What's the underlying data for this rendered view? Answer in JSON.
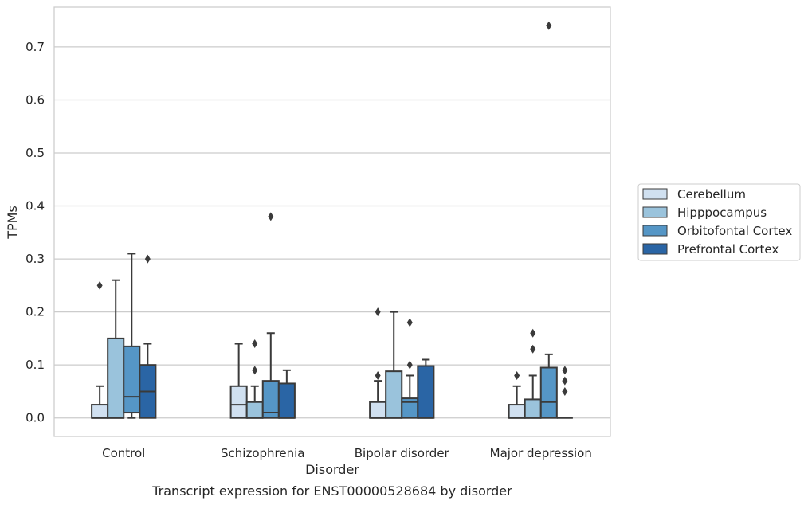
{
  "chart_data": {
    "type": "box",
    "caption": "Transcript expression for ENST00000528684 by disorder",
    "xlabel": "Disorder",
    "ylabel": "TPMs",
    "ylim": [
      -0.035,
      0.775
    ],
    "yticks": [
      "0.0",
      "0.1",
      "0.2",
      "0.3",
      "0.4",
      "0.5",
      "0.6",
      "0.7"
    ],
    "grid": "horizontal",
    "legend_position": "right",
    "categories": [
      "Control",
      "Schizophrenia",
      "Bipolar disorder",
      "Major depression"
    ],
    "series": [
      {
        "name": "Cerebellum",
        "color": "#d0e0f0",
        "boxes": [
          {
            "whislo": 0.0,
            "q1": 0.0,
            "med": 0.0,
            "q3": 0.025,
            "whishi": 0.06,
            "fliers": [
              0.25
            ]
          },
          {
            "whislo": 0.0,
            "q1": 0.0,
            "med": 0.025,
            "q3": 0.06,
            "whishi": 0.14,
            "fliers": []
          },
          {
            "whislo": 0.0,
            "q1": 0.0,
            "med": 0.0,
            "q3": 0.03,
            "whishi": 0.07,
            "fliers": [
              0.08,
              0.2
            ]
          },
          {
            "whislo": 0.0,
            "q1": 0.0,
            "med": 0.0,
            "q3": 0.025,
            "whishi": 0.06,
            "fliers": [
              0.08
            ]
          }
        ]
      },
      {
        "name": "Hipppocampus",
        "color": "#9ac3dc",
        "boxes": [
          {
            "whislo": 0.0,
            "q1": 0.0,
            "med": 0.0,
            "q3": 0.15,
            "whishi": 0.26,
            "fliers": []
          },
          {
            "whislo": 0.0,
            "q1": 0.0,
            "med": 0.0,
            "q3": 0.03,
            "whishi": 0.06,
            "fliers": [
              0.09,
              0.14
            ]
          },
          {
            "whislo": 0.0,
            "q1": 0.0,
            "med": 0.0,
            "q3": 0.088,
            "whishi": 0.2,
            "fliers": []
          },
          {
            "whislo": 0.0,
            "q1": 0.0,
            "med": 0.0,
            "q3": 0.035,
            "whishi": 0.08,
            "fliers": [
              0.13,
              0.16
            ]
          }
        ]
      },
      {
        "name": "Orbitofontal Cortex",
        "color": "#5596c6",
        "boxes": [
          {
            "whislo": 0.0,
            "q1": 0.01,
            "med": 0.04,
            "q3": 0.135,
            "whishi": 0.31,
            "fliers": []
          },
          {
            "whislo": 0.0,
            "q1": 0.0,
            "med": 0.01,
            "q3": 0.07,
            "whishi": 0.16,
            "fliers": [
              0.38
            ]
          },
          {
            "whislo": 0.0,
            "q1": 0.0,
            "med": 0.03,
            "q3": 0.037,
            "whishi": 0.08,
            "fliers": [
              0.1,
              0.18
            ]
          },
          {
            "whislo": 0.0,
            "q1": 0.0,
            "med": 0.03,
            "q3": 0.095,
            "whishi": 0.12,
            "fliers": [
              0.74
            ]
          }
        ]
      },
      {
        "name": "Prefrontal Cortex",
        "color": "#2a65a5",
        "boxes": [
          {
            "whislo": 0.0,
            "q1": 0.0,
            "med": 0.05,
            "q3": 0.1,
            "whishi": 0.14,
            "fliers": [
              0.3
            ]
          },
          {
            "whislo": 0.0,
            "q1": 0.0,
            "med": 0.0,
            "q3": 0.065,
            "whishi": 0.09,
            "fliers": []
          },
          {
            "whislo": 0.0,
            "q1": 0.0,
            "med": 0.0,
            "q3": 0.098,
            "whishi": 0.11,
            "fliers": []
          },
          {
            "whislo": 0.0,
            "q1": 0.0,
            "med": 0.0,
            "q3": 0.0,
            "whishi": 0.0,
            "fliers": [
              0.05,
              0.07,
              0.09
            ]
          }
        ]
      }
    ]
  }
}
